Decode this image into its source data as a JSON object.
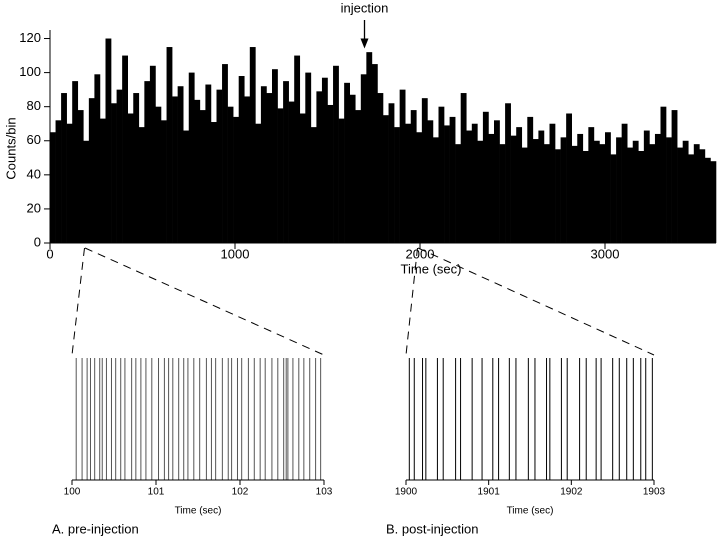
{
  "chart_data": [
    {
      "type": "histogram",
      "xlabel": "Time (sec)",
      "ylabel": "Counts/bin",
      "color": "#000000",
      "annotation": {
        "text": "injection",
        "x": 1700,
        "y": 113
      },
      "xlim": [
        0,
        3600
      ],
      "xticks": [
        0,
        1000,
        2000,
        3000
      ],
      "ylim": [
        0,
        125
      ],
      "yticks": [
        0,
        20,
        40,
        60,
        80,
        100,
        120
      ],
      "bins": [
        0,
        30,
        60,
        90,
        120,
        150,
        180,
        210,
        240,
        270,
        300,
        330,
        360,
        390,
        420,
        450,
        480,
        510,
        540,
        570,
        600,
        630,
        660,
        690,
        720,
        750,
        780,
        810,
        840,
        870,
        900,
        930,
        960,
        990,
        1020,
        1050,
        1080,
        1110,
        1140,
        1170,
        1200,
        1230,
        1260,
        1290,
        1320,
        1350,
        1380,
        1410,
        1440,
        1470,
        1500,
        1530,
        1560,
        1590,
        1620,
        1650,
        1680,
        1710,
        1740,
        1770,
        1800,
        1830,
        1860,
        1890,
        1920,
        1950,
        1980,
        2010,
        2040,
        2070,
        2100,
        2130,
        2160,
        2190,
        2220,
        2250,
        2280,
        2310,
        2340,
        2370,
        2400,
        2430,
        2460,
        2490,
        2520,
        2550,
        2580,
        2610,
        2640,
        2670,
        2700,
        2730,
        2760,
        2790,
        2820,
        2850,
        2880,
        2910,
        2940,
        2970,
        3000,
        3030,
        3060,
        3090,
        3120,
        3150,
        3180,
        3210,
        3240,
        3270,
        3300,
        3330,
        3360,
        3390,
        3420,
        3450,
        3480,
        3510,
        3540,
        3570,
        3600
      ],
      "values": [
        65,
        72,
        88,
        70,
        95,
        78,
        60,
        85,
        99,
        73,
        120,
        82,
        90,
        110,
        76,
        88,
        68,
        95,
        104,
        80,
        72,
        115,
        86,
        92,
        66,
        100,
        84,
        78,
        93,
        71,
        90,
        105,
        80,
        74,
        98,
        86,
        115,
        70,
        92,
        88,
        102,
        79,
        95,
        83,
        110,
        76,
        100,
        68,
        89,
        97,
        81,
        104,
        73,
        94,
        87,
        78,
        99,
        112,
        105,
        88,
        75,
        82,
        68,
        90,
        70,
        78,
        65,
        85,
        72,
        62,
        80,
        69,
        74,
        58,
        88,
        66,
        70,
        60,
        77,
        64,
        72,
        58,
        82,
        63,
        68,
        56,
        74,
        61,
        66,
        58,
        70,
        55,
        62,
        76,
        57,
        64,
        54,
        68,
        60,
        58,
        65,
        52,
        62,
        70,
        56,
        60,
        54,
        66,
        58,
        64,
        80,
        62,
        78,
        56,
        60,
        52,
        58,
        55,
        50,
        48
      ]
    },
    {
      "type": "raster",
      "xlabel": "Time (sec)",
      "caption": "A. pre-injection",
      "color": "#555555",
      "xlim": [
        100,
        103
      ],
      "xticks": [
        100,
        101,
        102,
        103
      ],
      "values": [
        100.05,
        100.12,
        100.18,
        100.22,
        100.27,
        100.33,
        100.36,
        100.41,
        100.47,
        100.52,
        100.58,
        100.63,
        100.71,
        100.76,
        100.82,
        100.88,
        100.95,
        101.03,
        101.1,
        101.15,
        101.2,
        101.27,
        101.33,
        101.38,
        101.45,
        101.52,
        101.6,
        101.66,
        101.71,
        101.79,
        101.86,
        101.9,
        101.97,
        102.02,
        102.1,
        102.17,
        102.24,
        102.3,
        102.38,
        102.45,
        102.52,
        102.55,
        102.57,
        102.63,
        102.7,
        102.76,
        102.83,
        102.9,
        102.96
      ]
    },
    {
      "type": "raster",
      "xlabel": "Time (sec)",
      "caption": "B. post-injection",
      "color": "#000000",
      "xlim": [
        1900,
        1903
      ],
      "xticks": [
        1900,
        1901,
        1902,
        1903
      ],
      "values": [
        1900.04,
        1900.1,
        1900.2,
        1900.24,
        1900.38,
        1900.45,
        1900.6,
        1900.66,
        1900.8,
        1900.92,
        1901.05,
        1901.12,
        1901.25,
        1901.33,
        1901.48,
        1901.56,
        1901.7,
        1901.74,
        1901.88,
        1901.95,
        1902.1,
        1902.18,
        1902.3,
        1902.36,
        1902.5,
        1902.58,
        1902.67,
        1902.75,
        1902.84,
        1902.9,
        1902.98
      ]
    }
  ]
}
